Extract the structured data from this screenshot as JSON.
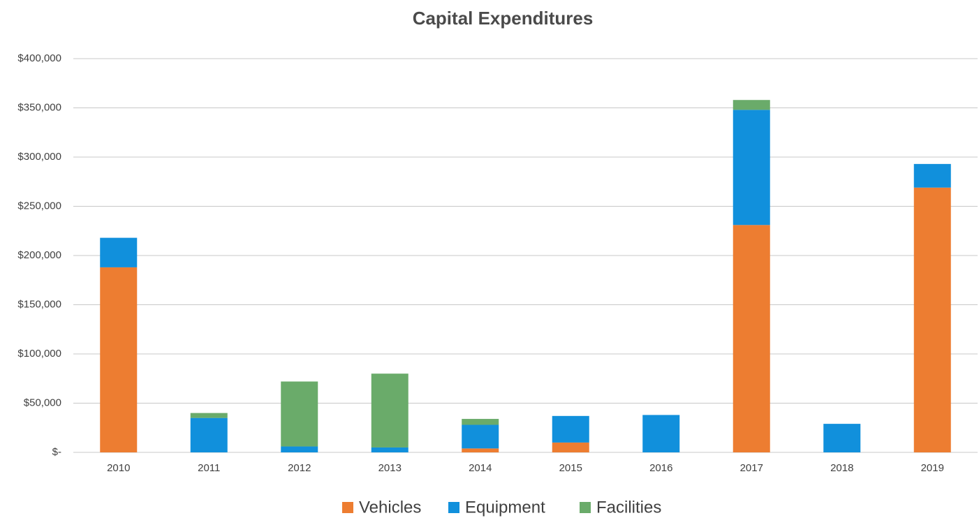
{
  "chart_data": {
    "type": "stacked_bar",
    "title": "Capital Expenditures",
    "categories": [
      "2010",
      "2011",
      "2012",
      "2013",
      "2014",
      "2015",
      "2016",
      "2017",
      "2018",
      "2019"
    ],
    "series": [
      {
        "name": "Vehicles",
        "color": "#ed7d31",
        "values": [
          188000,
          0,
          0,
          0,
          4000,
          10000,
          0,
          231000,
          0,
          269000
        ]
      },
      {
        "name": "Equipment",
        "color": "#1190dc",
        "values": [
          30000,
          35000,
          6000,
          5000,
          24000,
          27000,
          38000,
          117000,
          29000,
          24000
        ]
      },
      {
        "name": "Facilities",
        "color": "#6aab6a",
        "values": [
          0,
          5000,
          66000,
          75000,
          6000,
          0,
          0,
          10000,
          0,
          0
        ]
      }
    ],
    "ylim": [
      0,
      400000
    ],
    "yticks": [
      {
        "value": 0,
        "label": "$-"
      },
      {
        "value": 50000,
        "label": "$50,000"
      },
      {
        "value": 100000,
        "label": "$100,000"
      },
      {
        "value": 150000,
        "label": "$150,000"
      },
      {
        "value": 200000,
        "label": "$200,000"
      },
      {
        "value": 250000,
        "label": "$250,000"
      },
      {
        "value": 300000,
        "label": "$300,000"
      },
      {
        "value": 350000,
        "label": "$350,000"
      },
      {
        "value": 400000,
        "label": "$400,000"
      }
    ],
    "grid": true,
    "legend": "bottom"
  }
}
